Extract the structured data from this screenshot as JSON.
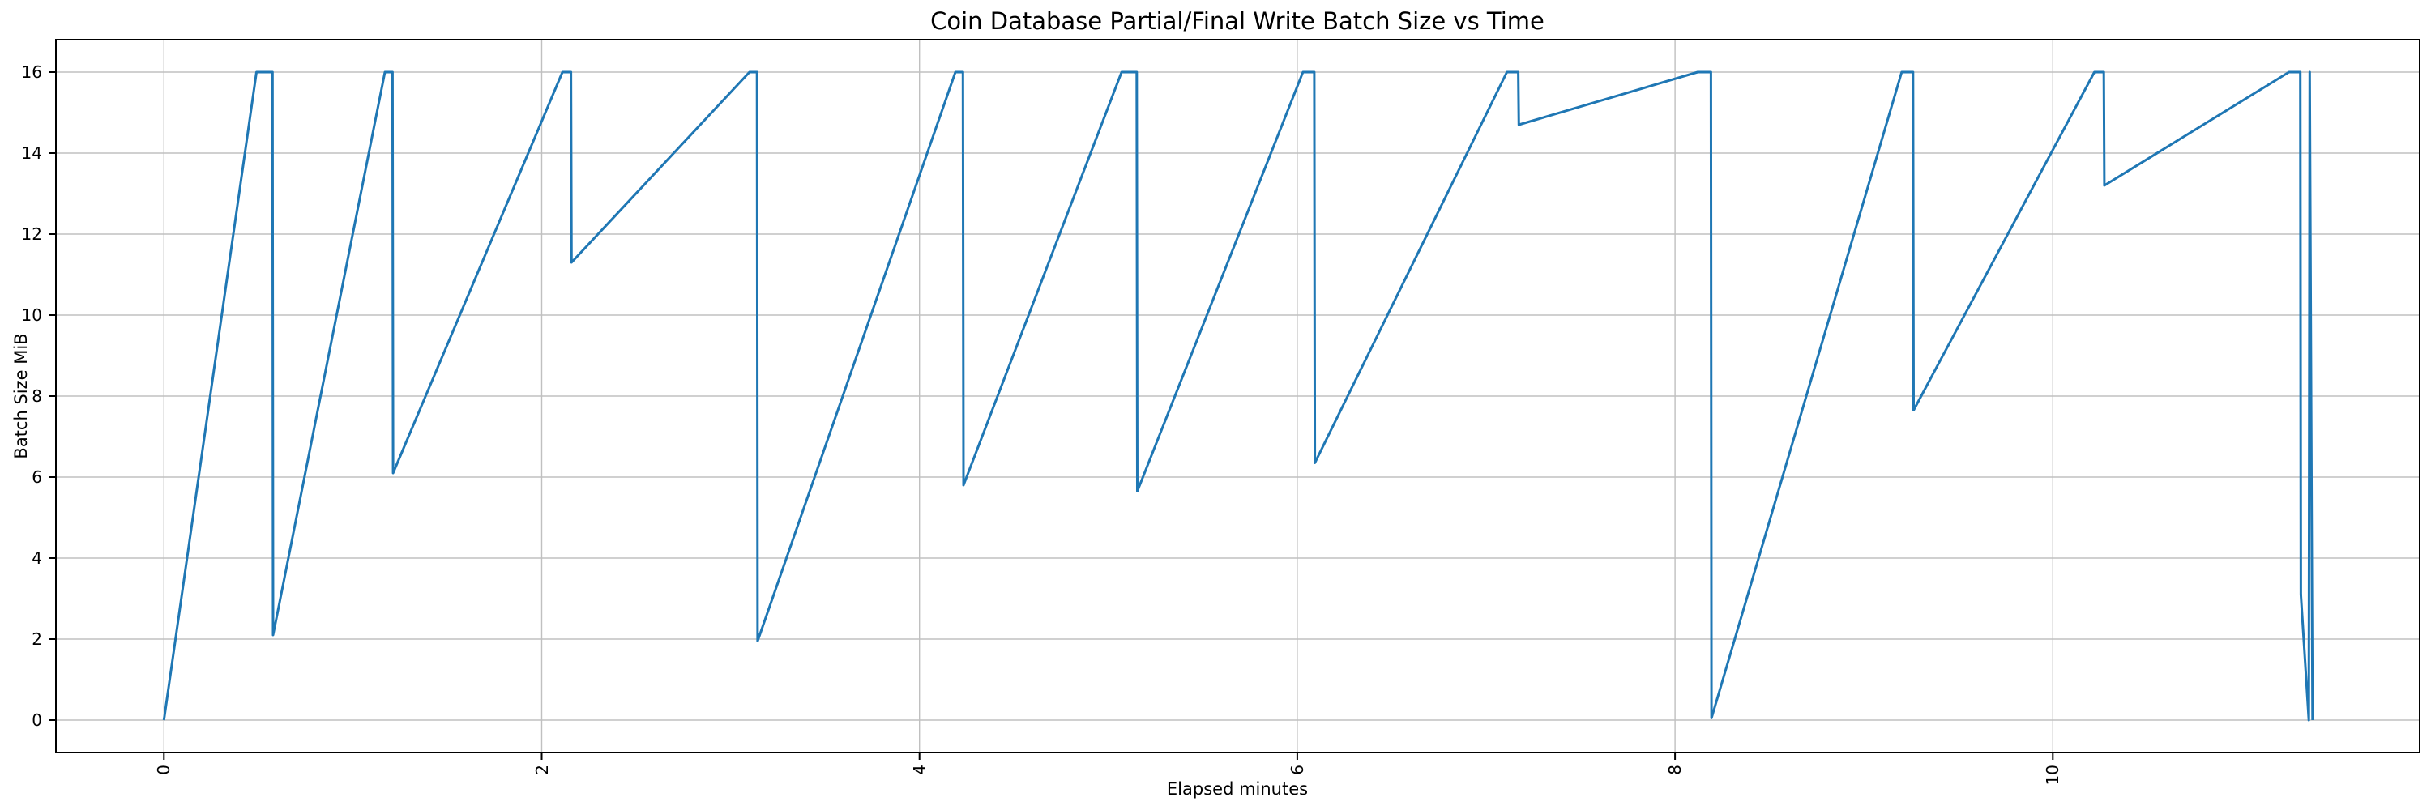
{
  "figure": {
    "background": "#ffffff"
  },
  "chart_data": {
    "type": "line",
    "title": "Coin Database Partial/Final Write Batch Size vs Time",
    "xlabel": "Elapsed minutes",
    "ylabel": "Batch Size MiB",
    "x_ticks": [
      0,
      2,
      4,
      6,
      8,
      10
    ],
    "y_ticks": [
      0,
      2,
      4,
      6,
      8,
      10,
      12,
      14,
      16
    ],
    "xlim": [
      -0.57,
      11.94
    ],
    "ylim": [
      -0.8,
      16.8
    ],
    "grid": true,
    "legend": false,
    "line_color": "#1f77b4",
    "grid_color": "#c0c0c0",
    "spine_color": "#000000",
    "series": [
      {
        "name": "batch-size-mib",
        "points": [
          [
            0.0,
            0.0
          ],
          [
            0.49,
            16.0
          ],
          [
            0.575,
            16.0
          ],
          [
            0.578,
            2.1
          ],
          [
            1.17,
            16.0
          ],
          [
            1.21,
            16.0
          ],
          [
            1.213,
            6.1
          ],
          [
            2.11,
            16.0
          ],
          [
            2.155,
            16.0
          ],
          [
            2.158,
            11.3
          ],
          [
            3.1,
            16.0
          ],
          [
            3.14,
            16.0
          ],
          [
            3.143,
            1.95
          ],
          [
            4.19,
            16.0
          ],
          [
            4.23,
            16.0
          ],
          [
            4.233,
            5.8
          ],
          [
            5.07,
            16.0
          ],
          [
            5.15,
            16.0
          ],
          [
            5.153,
            5.65
          ],
          [
            6.03,
            16.0
          ],
          [
            6.09,
            16.0
          ],
          [
            6.093,
            6.35
          ],
          [
            7.11,
            16.0
          ],
          [
            7.17,
            16.0
          ],
          [
            7.173,
            14.7
          ],
          [
            8.12,
            16.0
          ],
          [
            8.19,
            16.0
          ],
          [
            8.193,
            0.05
          ],
          [
            9.2,
            16.0
          ],
          [
            9.26,
            16.0
          ],
          [
            9.263,
            7.65
          ],
          [
            10.22,
            16.0
          ],
          [
            10.27,
            16.0
          ],
          [
            10.273,
            13.2
          ],
          [
            11.25,
            16.0
          ],
          [
            11.31,
            16.0
          ],
          [
            11.313,
            3.1
          ],
          [
            11.355,
            0.0
          ],
          [
            11.36,
            16.0
          ],
          [
            11.375,
            0.0
          ]
        ]
      }
    ]
  }
}
